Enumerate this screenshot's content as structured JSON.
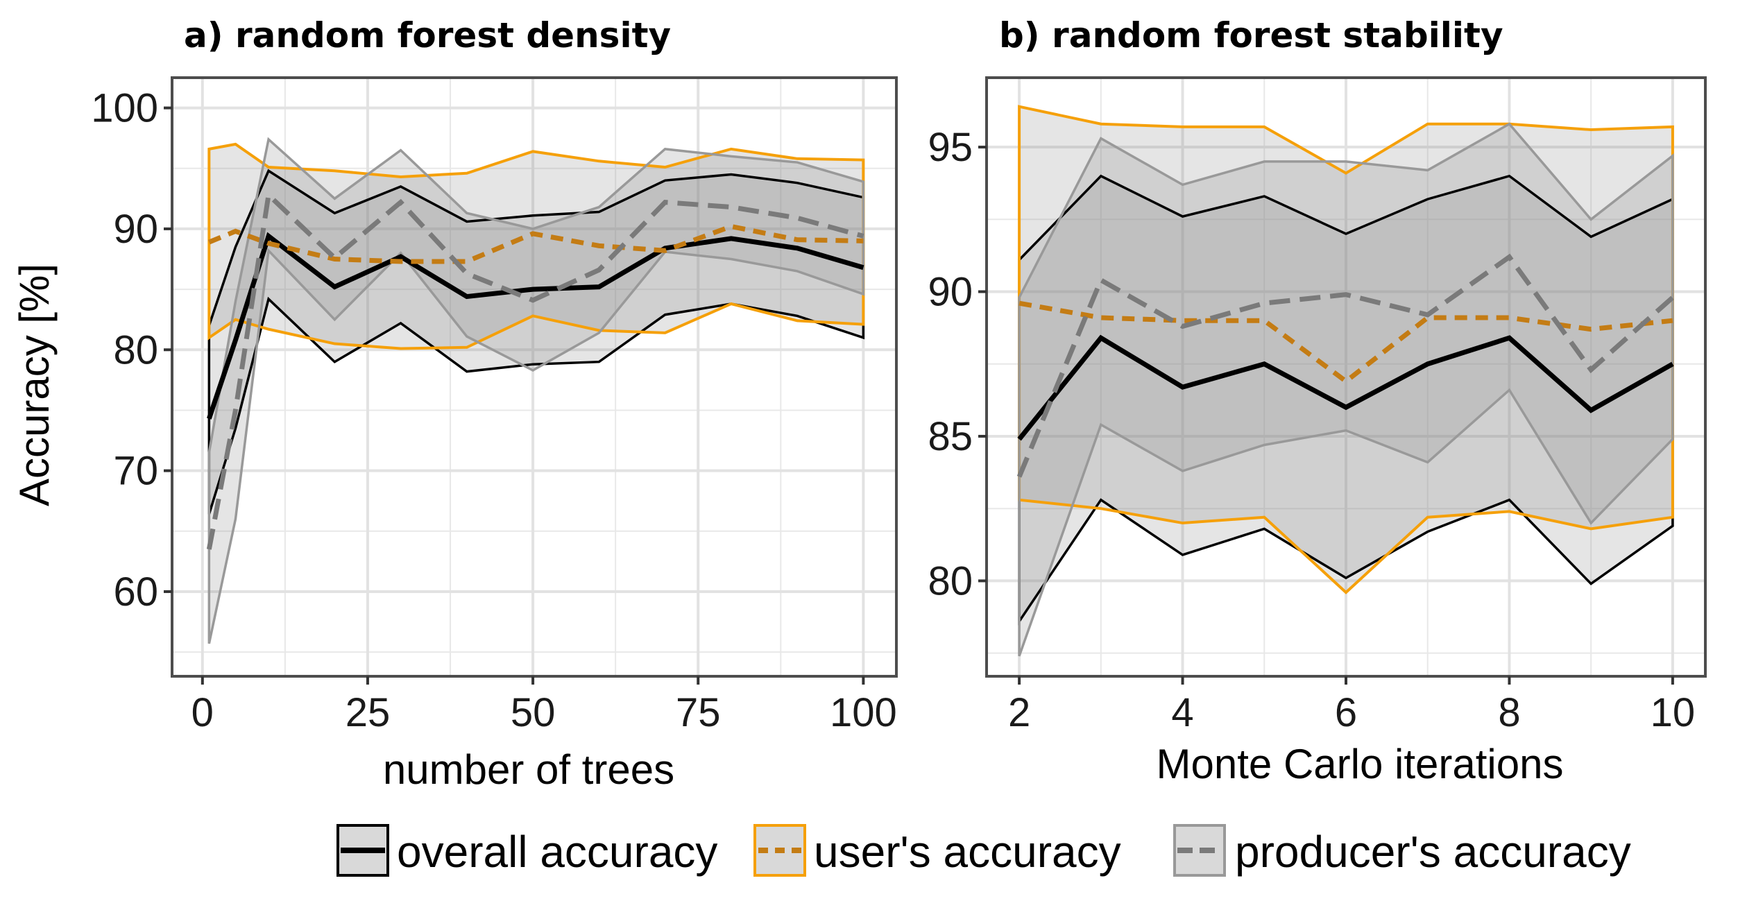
{
  "figure": {
    "colors": {
      "overall": "#000000",
      "users": "#f5a00a",
      "users_mean": "#c47c14",
      "producers": "#999999",
      "producers_mean": "#7a7a7a",
      "band_light": "#d9d9d9",
      "band_dark": "#a6a6a6",
      "grid": "#e8e8e8",
      "frame": "#4d4d4d"
    },
    "legend": {
      "position": "bottom",
      "items": [
        {
          "key": "overall",
          "label": "overall accuracy"
        },
        {
          "key": "users",
          "label": "user's accuracy"
        },
        {
          "key": "producers",
          "label": "producer's accuracy"
        }
      ]
    }
  },
  "chart_data": [
    {
      "id": "a",
      "type": "line",
      "title": "a) random forest density",
      "xlabel": "number of trees",
      "ylabel": "Accuracy [%]",
      "xlim": [
        -4.6,
        105
      ],
      "ylim": [
        53,
        102.5
      ],
      "xticks": [
        0,
        25,
        50,
        75,
        100
      ],
      "yticks": [
        60,
        70,
        80,
        90,
        100
      ],
      "grid": true,
      "x": [
        1,
        5,
        10,
        20,
        30,
        40,
        50,
        60,
        70,
        80,
        90,
        100
      ],
      "series": [
        {
          "name": "overall accuracy",
          "key": "overall",
          "mean": [
            74.3,
            80.8,
            89.4,
            85.2,
            87.7,
            84.4,
            85.0,
            85.2,
            88.4,
            89.2,
            88.4,
            86.8
          ],
          "upper": [
            82.0,
            88.5,
            94.8,
            91.3,
            93.5,
            90.6,
            91.1,
            91.4,
            94.0,
            94.5,
            93.8,
            92.6
          ],
          "lower": [
            66.4,
            73.5,
            84.2,
            79.0,
            82.2,
            78.2,
            78.8,
            79.0,
            82.9,
            83.8,
            82.8,
            81.0
          ]
        },
        {
          "name": "user's accuracy",
          "key": "users",
          "mean": [
            88.9,
            89.8,
            88.8,
            87.5,
            87.3,
            87.3,
            89.6,
            88.6,
            88.2,
            90.2,
            89.1,
            89.0
          ],
          "upper": [
            96.6,
            97.0,
            95.1,
            94.8,
            94.3,
            94.6,
            96.4,
            95.6,
            95.1,
            96.6,
            95.8,
            95.7
          ],
          "lower": [
            81.0,
            82.5,
            81.7,
            80.5,
            80.1,
            80.2,
            82.8,
            81.6,
            81.4,
            83.8,
            82.4,
            82.1
          ]
        },
        {
          "name": "producer's accuracy",
          "key": "producers",
          "mean": [
            63.5,
            75.0,
            92.8,
            87.6,
            92.2,
            86.3,
            84.1,
            86.6,
            92.2,
            91.8,
            90.9,
            89.4
          ],
          "upper": [
            71.5,
            84.0,
            97.4,
            92.5,
            96.5,
            91.3,
            90.0,
            91.8,
            96.6,
            96.0,
            95.5,
            93.9
          ],
          "lower": [
            55.7,
            66.0,
            88.2,
            82.5,
            88.0,
            81.1,
            78.3,
            81.4,
            88.1,
            87.5,
            86.5,
            84.6
          ]
        }
      ]
    },
    {
      "id": "b",
      "type": "line",
      "title": "b) random forest stability",
      "xlabel": "Monte Carlo iterations",
      "ylabel": "",
      "xlim": [
        1.6,
        10.4
      ],
      "ylim": [
        76.7,
        97.4
      ],
      "xticks": [
        2,
        4,
        6,
        8,
        10
      ],
      "yticks": [
        80,
        85,
        90,
        95
      ],
      "grid": true,
      "x": [
        2,
        3,
        4,
        5,
        6,
        7,
        8,
        9,
        10
      ],
      "series": [
        {
          "name": "overall accuracy",
          "key": "overall",
          "mean": [
            84.9,
            88.4,
            86.7,
            87.5,
            86.0,
            87.5,
            88.4,
            85.9,
            87.5
          ],
          "upper": [
            91.1,
            94.0,
            92.6,
            93.3,
            92.0,
            93.2,
            94.0,
            91.9,
            93.2
          ],
          "lower": [
            78.6,
            82.8,
            80.9,
            81.8,
            80.1,
            81.7,
            82.8,
            79.9,
            81.9
          ]
        },
        {
          "name": "user's accuracy",
          "key": "users",
          "mean": [
            89.6,
            89.1,
            89.0,
            89.0,
            86.9,
            89.1,
            89.1,
            88.7,
            89.0
          ],
          "upper": [
            96.4,
            95.8,
            95.7,
            95.7,
            94.1,
            95.8,
            95.8,
            95.6,
            95.7
          ],
          "lower": [
            82.8,
            82.5,
            82.0,
            82.2,
            79.6,
            82.2,
            82.4,
            81.8,
            82.2
          ]
        },
        {
          "name": "producer's accuracy",
          "key": "producers",
          "mean": [
            83.6,
            90.4,
            88.8,
            89.6,
            89.9,
            89.2,
            91.2,
            87.3,
            89.8
          ],
          "upper": [
            89.8,
            95.3,
            93.7,
            94.5,
            94.5,
            94.2,
            95.8,
            92.5,
            94.7
          ],
          "lower": [
            77.4,
            85.4,
            83.8,
            84.7,
            85.2,
            84.1,
            86.6,
            82.0,
            84.9
          ]
        }
      ]
    }
  ]
}
